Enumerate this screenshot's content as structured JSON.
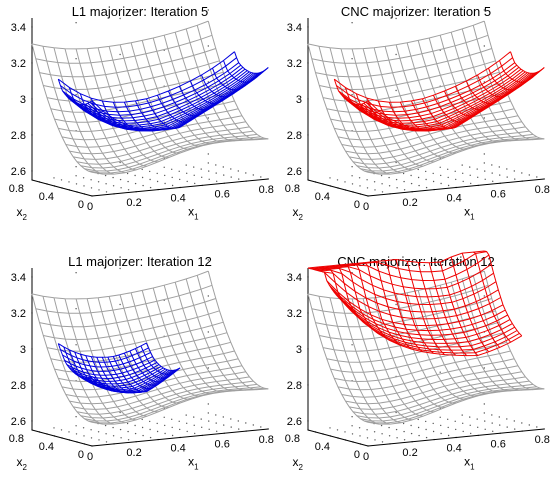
{
  "chart_data": [
    {
      "type": "surface",
      "title": "L1 majorizer: Iteration 5",
      "xlabel": "x",
      "xlabel_sub": "1",
      "ylabel": "x",
      "ylabel_sub": "2",
      "z_ticks": [
        "2.6",
        "2.8",
        "3",
        "3.2",
        "3.4"
      ],
      "x1_ticks": [
        "0",
        "0.2",
        "0.4",
        "0.6",
        "0.8"
      ],
      "x2_ticks": [
        "0",
        "0.4",
        "0.8"
      ],
      "zlim": [
        2.55,
        3.45
      ],
      "x1lim": [
        0,
        0.8
      ],
      "x2lim": [
        0,
        0.8
      ],
      "series": [
        {
          "color": "#a0a0a0",
          "function": "cost",
          "x1_range": [
            0,
            0.8
          ],
          "x2_range": [
            0,
            0.8
          ]
        },
        {
          "color": "#0000dd",
          "function": "majorizer",
          "center": [
            0.4,
            0.4
          ],
          "x1_range": [
            0,
            0.8
          ],
          "x2_range": [
            0,
            0.45
          ]
        }
      ]
    },
    {
      "type": "surface",
      "title": "CNC majorizer: Iteration 5",
      "xlabel": "x",
      "xlabel_sub": "1",
      "ylabel": "x",
      "ylabel_sub": "2",
      "z_ticks": [
        "2.6",
        "2.8",
        "3",
        "3.2",
        "3.4"
      ],
      "x1_ticks": [
        "0",
        "0.2",
        "0.4",
        "0.6",
        "0.8"
      ],
      "x2_ticks": [
        "0",
        "0.4",
        "0.8"
      ],
      "zlim": [
        2.55,
        3.45
      ],
      "x1lim": [
        0,
        0.8
      ],
      "x2lim": [
        0,
        0.8
      ],
      "series": [
        {
          "color": "#a0a0a0",
          "function": "cost",
          "x1_range": [
            0,
            0.8
          ],
          "x2_range": [
            0,
            0.8
          ]
        },
        {
          "color": "#ee0000",
          "function": "majorizer",
          "center": [
            0.4,
            0.4
          ],
          "x1_range": [
            0,
            0.8
          ],
          "x2_range": [
            0,
            0.45
          ]
        }
      ]
    },
    {
      "type": "surface",
      "title": "L1 majorizer: Iteration 12",
      "xlabel": "x",
      "xlabel_sub": "1",
      "ylabel": "x",
      "ylabel_sub": "2",
      "z_ticks": [
        "2.6",
        "2.8",
        "3",
        "3.2",
        "3.4"
      ],
      "x1_ticks": [
        "0",
        "0.2",
        "0.4",
        "0.6",
        "0.8"
      ],
      "x2_ticks": [
        "0",
        "0.4",
        "0.8"
      ],
      "zlim": [
        2.55,
        3.45
      ],
      "x1lim": [
        0,
        0.8
      ],
      "x2lim": [
        0,
        0.8
      ],
      "series": [
        {
          "color": "#a0a0a0",
          "function": "cost",
          "x1_range": [
            0,
            0.8
          ],
          "x2_range": [
            0,
            0.8
          ]
        },
        {
          "color": "#0000dd",
          "function": "majorizer",
          "center": [
            0.25,
            0.35
          ],
          "x1_range": [
            0,
            0.4
          ],
          "x2_range": [
            0,
            0.45
          ]
        }
      ]
    },
    {
      "type": "surface",
      "title": "CNC majorizer: Iteration 12",
      "xlabel": "x",
      "xlabel_sub": "1",
      "ylabel": "x",
      "ylabel_sub": "2",
      "z_ticks": [
        "2.6",
        "2.8",
        "3",
        "3.2",
        "3.4"
      ],
      "x1_ticks": [
        "0",
        "0.2",
        "0.4",
        "0.6",
        "0.8"
      ],
      "x2_ticks": [
        "0",
        "0.4",
        "0.8"
      ],
      "zlim": [
        2.55,
        3.45
      ],
      "x1lim": [
        0,
        0.8
      ],
      "x2lim": [
        0,
        0.8
      ],
      "series": [
        {
          "color": "#a0a0a0",
          "function": "cost",
          "x1_range": [
            0,
            0.8
          ],
          "x2_range": [
            0,
            0.8
          ]
        },
        {
          "color": "#ee0000",
          "function": "majorizer",
          "center": [
            0.6,
            0.55
          ],
          "x1_range": [
            0,
            0.8
          ],
          "x2_range": [
            0.3,
            0.8
          ]
        }
      ]
    }
  ]
}
